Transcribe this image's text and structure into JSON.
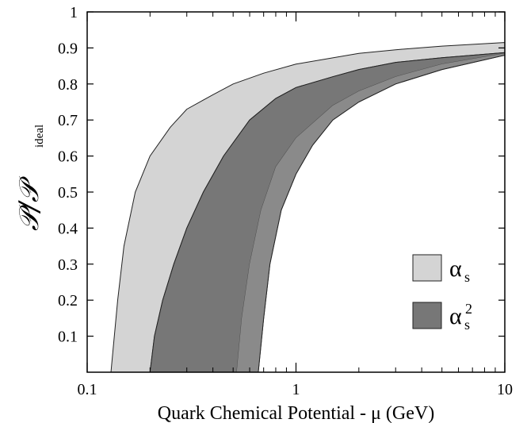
{
  "chart_data": {
    "type": "area",
    "xlabel": "Quark Chemical Potential - μ (GeV)",
    "ylabel": {
      "main": "𝒫/𝒫",
      "sub": "ideal"
    },
    "xscale": "log",
    "xlim": [
      0.1,
      10
    ],
    "ylim": [
      0,
      1
    ],
    "x_ticks": [
      0.1,
      1,
      10
    ],
    "x_tick_labels": [
      "0.1",
      "1",
      "10"
    ],
    "y_ticks": [
      0.1,
      0.2,
      0.3,
      0.4,
      0.5,
      0.6,
      0.7,
      0.8,
      0.9,
      1.0
    ],
    "y_tick_labels": [
      "0.1",
      "0.2",
      "0.3",
      "0.4",
      "0.5",
      "0.6",
      "0.7",
      "0.8",
      "0.9",
      "1"
    ],
    "grid": false,
    "legend_position": "bottom-right",
    "series": [
      {
        "key": "alpha_s",
        "legend": {
          "main": "α",
          "sub": "s",
          "sup": ""
        },
        "color": "#d4d4d4",
        "upper": [
          [
            0.13,
            0.0
          ],
          [
            0.14,
            0.2
          ],
          [
            0.15,
            0.35
          ],
          [
            0.17,
            0.5
          ],
          [
            0.2,
            0.6
          ],
          [
            0.25,
            0.68
          ],
          [
            0.3,
            0.73
          ],
          [
            0.4,
            0.77
          ],
          [
            0.5,
            0.8
          ],
          [
            0.7,
            0.83
          ],
          [
            1.0,
            0.855
          ],
          [
            2.0,
            0.885
          ],
          [
            3.0,
            0.895
          ],
          [
            5.0,
            0.905
          ],
          [
            10.0,
            0.915
          ]
        ],
        "lower": [
          [
            0.2,
            0.0
          ],
          [
            0.21,
            0.1
          ],
          [
            0.23,
            0.2
          ],
          [
            0.26,
            0.3
          ],
          [
            0.3,
            0.4
          ],
          [
            0.36,
            0.5
          ],
          [
            0.45,
            0.6
          ],
          [
            0.6,
            0.7
          ],
          [
            0.8,
            0.76
          ],
          [
            1.0,
            0.79
          ],
          [
            1.5,
            0.82
          ],
          [
            2.0,
            0.84
          ],
          [
            3.0,
            0.86
          ],
          [
            5.0,
            0.873
          ],
          [
            10.0,
            0.887
          ]
        ]
      },
      {
        "key": "alpha_s_squared",
        "legend": {
          "main": "α",
          "sub": "s",
          "sup": "2"
        },
        "color": "#777777",
        "upper": [
          [
            0.2,
            0.0
          ],
          [
            0.21,
            0.1
          ],
          [
            0.23,
            0.2
          ],
          [
            0.26,
            0.3
          ],
          [
            0.3,
            0.4
          ],
          [
            0.36,
            0.5
          ],
          [
            0.45,
            0.6
          ],
          [
            0.6,
            0.7
          ],
          [
            0.8,
            0.76
          ],
          [
            1.0,
            0.79
          ],
          [
            1.5,
            0.82
          ],
          [
            2.0,
            0.84
          ],
          [
            3.0,
            0.86
          ],
          [
            5.0,
            0.873
          ],
          [
            10.0,
            0.887
          ]
        ],
        "lower": [
          [
            0.66,
            0.0
          ],
          [
            0.7,
            0.15
          ],
          [
            0.75,
            0.3
          ],
          [
            0.85,
            0.45
          ],
          [
            1.0,
            0.55
          ],
          [
            1.2,
            0.63
          ],
          [
            1.5,
            0.7
          ],
          [
            2.0,
            0.75
          ],
          [
            3.0,
            0.8
          ],
          [
            5.0,
            0.84
          ],
          [
            10.0,
            0.88
          ]
        ]
      }
    ],
    "divider": [
      [
        0.52,
        0.0
      ],
      [
        0.55,
        0.15
      ],
      [
        0.6,
        0.3
      ],
      [
        0.68,
        0.45
      ],
      [
        0.8,
        0.57
      ],
      [
        1.0,
        0.65
      ],
      [
        1.5,
        0.74
      ],
      [
        2.0,
        0.78
      ],
      [
        3.0,
        0.82
      ],
      [
        5.0,
        0.855
      ],
      [
        10.0,
        0.885
      ]
    ]
  }
}
